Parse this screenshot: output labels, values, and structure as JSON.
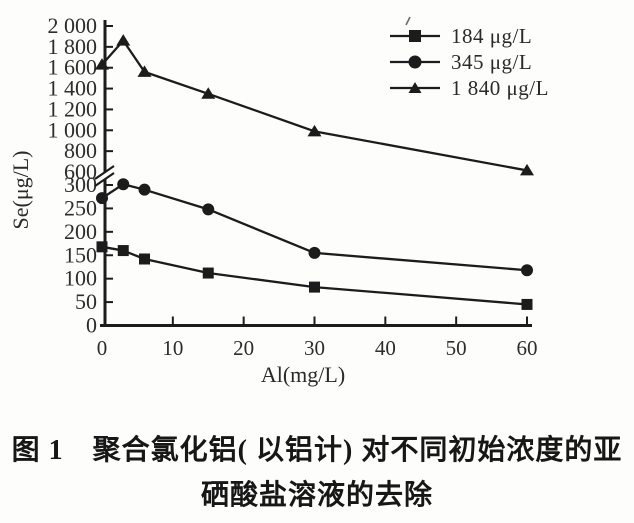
{
  "figure": {
    "caption_line1": "图 1　聚合氯化铝( 以铝计) 对不同初始浓度的亚",
    "caption_line2": "硒酸盐溶液的去除"
  },
  "chart_data": {
    "type": "line",
    "title": "",
    "xlabel": "Al(mg/L)",
    "ylabel": "Se(μg/L)",
    "x": [
      0,
      3,
      6,
      15,
      30,
      60
    ],
    "series": [
      {
        "name": "184 μg/L",
        "marker": "square",
        "values": [
          168,
          160,
          142,
          112,
          82,
          45
        ]
      },
      {
        "name": "345 μg/L",
        "marker": "circle",
        "values": [
          272,
          318,
          290,
          248,
          155,
          118
        ]
      },
      {
        "name": "1 840 μg/L",
        "marker": "triangle",
        "values": [
          1630,
          1860,
          1560,
          1350,
          990,
          615
        ]
      }
    ],
    "x_ticks": [
      0,
      10,
      20,
      30,
      40,
      50,
      60
    ],
    "x_tick_labels": [
      "0",
      "10",
      "20",
      "30",
      "40",
      "50",
      "60"
    ],
    "xlim": [
      0,
      60
    ],
    "y_axis": {
      "broken": true,
      "break_between": [
        300,
        600
      ],
      "lower_segment": {
        "range": [
          0,
          300
        ],
        "ticks": [
          0,
          50,
          100,
          150,
          200,
          250,
          300
        ],
        "tick_labels": [
          "0",
          "50",
          "100",
          "150",
          "200",
          "250",
          "300"
        ]
      },
      "upper_segment": {
        "range": [
          600,
          2000
        ],
        "ticks": [
          600,
          800,
          1000,
          1200,
          1400,
          1600,
          1800,
          2000
        ],
        "tick_labels": [
          "600",
          "800",
          "1 000",
          "1 200",
          "1 400",
          "1 600",
          "1 800",
          "2 000"
        ]
      }
    },
    "legend_position": "top-right",
    "grid": false,
    "ink_color": "#1c1c1c"
  }
}
